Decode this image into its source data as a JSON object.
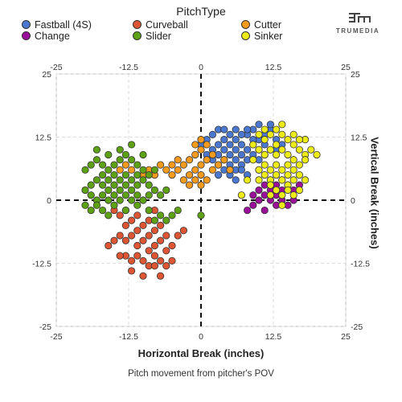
{
  "legend": {
    "title": "PitchType",
    "items": [
      {
        "name": "Fastball (4S)",
        "color": "#4a78d0"
      },
      {
        "name": "Curveball",
        "color": "#de5533"
      },
      {
        "name": "Cutter",
        "color": "#f49a1c"
      },
      {
        "name": "Change",
        "color": "#9a0f99"
      },
      {
        "name": "Slider",
        "color": "#5da214"
      },
      {
        "name": "Sinker",
        "color": "#ecea17"
      }
    ]
  },
  "logo": {
    "text": "TRUMEDIA",
    "icon": "trumedia-logo-icon"
  },
  "chart_data": {
    "type": "scatter",
    "subtitle": "Pitch movement from pitcher's POV",
    "xlabel": "Horizontal Break (inches)",
    "ylabel": "Vertical Break (inches)",
    "xlim": [
      -25,
      25
    ],
    "ylim": [
      -25,
      25
    ],
    "xticks": [
      "-25",
      "-12.5",
      "0",
      "12.5",
      "25"
    ],
    "yticks": [
      "25",
      "12.5",
      "0",
      "-12.5",
      "-25"
    ],
    "grid": true,
    "reference_lines": {
      "x": 0,
      "y": 0,
      "style": "dashed"
    },
    "legend_position": "top",
    "series": [
      {
        "name": "Fastball (4S)",
        "color": "#4a78d0",
        "points": [
          [
            3,
            11
          ],
          [
            4,
            12
          ],
          [
            5,
            13
          ],
          [
            6,
            12
          ],
          [
            7,
            11
          ],
          [
            8,
            13
          ],
          [
            9,
            14
          ],
          [
            10,
            12
          ],
          [
            11,
            13
          ],
          [
            12,
            14
          ],
          [
            13,
            12
          ],
          [
            2,
            10
          ],
          [
            3,
            9
          ],
          [
            4,
            10
          ],
          [
            5,
            9
          ],
          [
            6,
            10
          ],
          [
            7,
            9
          ],
          [
            8,
            10
          ],
          [
            9,
            11
          ],
          [
            10,
            10
          ],
          [
            11,
            11
          ],
          [
            2,
            8
          ],
          [
            3,
            7
          ],
          [
            4,
            8
          ],
          [
            5,
            7
          ],
          [
            6,
            8
          ],
          [
            7,
            7
          ],
          [
            8,
            8
          ],
          [
            9,
            9
          ],
          [
            10,
            8
          ],
          [
            4,
            6
          ],
          [
            5,
            5
          ],
          [
            6,
            6
          ],
          [
            7,
            6
          ],
          [
            1,
            12
          ],
          [
            2,
            13
          ],
          [
            3,
            14
          ],
          [
            4,
            14
          ],
          [
            6,
            14
          ],
          [
            8,
            14
          ],
          [
            10,
            15
          ],
          [
            12,
            15
          ],
          [
            5,
            11
          ],
          [
            7,
            13
          ],
          [
            9,
            12
          ],
          [
            11,
            9
          ],
          [
            12,
            10
          ],
          [
            13,
            10
          ],
          [
            14,
            11
          ],
          [
            3,
            5
          ],
          [
            1,
            9
          ],
          [
            0,
            11
          ],
          [
            6,
            4
          ],
          [
            8,
            5
          ],
          [
            10,
            6
          ]
        ]
      },
      {
        "name": "Curveball",
        "color": "#de5533",
        "points": [
          [
            -15,
            -2
          ],
          [
            -14,
            -3
          ],
          [
            -13,
            -2
          ],
          [
            -12,
            -4
          ],
          [
            -11,
            -3
          ],
          [
            -10,
            -5
          ],
          [
            -9,
            -4
          ],
          [
            -8,
            -6
          ],
          [
            -7,
            -5
          ],
          [
            -14,
            -7
          ],
          [
            -13,
            -8
          ],
          [
            -12,
            -7
          ],
          [
            -11,
            -9
          ],
          [
            -10,
            -8
          ],
          [
            -9,
            -10
          ],
          [
            -8,
            -9
          ],
          [
            -7,
            -8
          ],
          [
            -6,
            -7
          ],
          [
            -13,
            -11
          ],
          [
            -12,
            -12
          ],
          [
            -11,
            -11
          ],
          [
            -10,
            -12
          ],
          [
            -9,
            -13
          ],
          [
            -8,
            -11
          ],
          [
            -7,
            -12
          ],
          [
            -16,
            -9
          ],
          [
            -15,
            -8
          ],
          [
            -6,
            -10
          ],
          [
            -5,
            -9
          ],
          [
            -8,
            -13
          ],
          [
            -10,
            -15
          ],
          [
            -12,
            -14
          ],
          [
            -7,
            -15
          ],
          [
            -5,
            -12
          ],
          [
            -4,
            -7
          ],
          [
            -3,
            -6
          ],
          [
            -9,
            -7
          ],
          [
            -11,
            -6
          ],
          [
            -13,
            -5
          ],
          [
            -6,
            -13
          ],
          [
            -8,
            -2
          ],
          [
            -14,
            -11
          ]
        ]
      },
      {
        "name": "Cutter",
        "color": "#f49a1c",
        "points": [
          [
            -2,
            5
          ],
          [
            -1,
            6
          ],
          [
            0,
            7
          ],
          [
            1,
            8
          ],
          [
            -1,
            9
          ],
          [
            0,
            10
          ],
          [
            1,
            11
          ],
          [
            -2,
            8
          ],
          [
            -3,
            7
          ],
          [
            -4,
            6
          ],
          [
            -5,
            5
          ],
          [
            -3,
            4
          ],
          [
            -2,
            3
          ],
          [
            -1,
            4
          ],
          [
            0,
            5
          ],
          [
            2,
            6
          ],
          [
            3,
            7
          ],
          [
            4,
            8
          ],
          [
            -6,
            6
          ],
          [
            -7,
            7
          ],
          [
            -8,
            5
          ],
          [
            -9,
            6
          ],
          [
            -10,
            5
          ],
          [
            -12,
            6
          ],
          [
            -13,
            7
          ],
          [
            -14,
            6
          ],
          [
            0,
            3
          ],
          [
            1,
            4
          ],
          [
            -1,
            11
          ],
          [
            0,
            12
          ],
          [
            2,
            9
          ],
          [
            5,
            6
          ],
          [
            -4,
            8
          ],
          [
            -5,
            7
          ]
        ]
      },
      {
        "name": "Change",
        "color": "#9a0f99",
        "points": [
          [
            9,
            1
          ],
          [
            10,
            2
          ],
          [
            11,
            3
          ],
          [
            12,
            2
          ],
          [
            13,
            1
          ],
          [
            14,
            2
          ],
          [
            15,
            3
          ],
          [
            16,
            2
          ],
          [
            10,
            0
          ],
          [
            12,
            0
          ],
          [
            14,
            0
          ],
          [
            13,
            -1
          ],
          [
            15,
            -1
          ],
          [
            11,
            -2
          ],
          [
            9,
            -1
          ],
          [
            16,
            0
          ],
          [
            12,
            4
          ],
          [
            14,
            4
          ],
          [
            13,
            3
          ],
          [
            11,
            1
          ],
          [
            8,
            -2
          ],
          [
            17,
            3
          ]
        ]
      },
      {
        "name": "Slider",
        "color": "#5da214",
        "points": [
          [
            -19,
            3
          ],
          [
            -18,
            4
          ],
          [
            -17,
            5
          ],
          [
            -16,
            4
          ],
          [
            -15,
            3
          ],
          [
            -14,
            4
          ],
          [
            -13,
            5
          ],
          [
            -12,
            4
          ],
          [
            -11,
            3
          ],
          [
            -10,
            4
          ],
          [
            -9,
            3
          ],
          [
            -8,
            2
          ],
          [
            -19,
            1
          ],
          [
            -18,
            0
          ],
          [
            -17,
            1
          ],
          [
            -16,
            2
          ],
          [
            -15,
            1
          ],
          [
            -14,
            0
          ],
          [
            -13,
            1
          ],
          [
            -12,
            2
          ],
          [
            -11,
            1
          ],
          [
            -10,
            0
          ],
          [
            -9,
            1
          ],
          [
            -20,
            6
          ],
          [
            -19,
            7
          ],
          [
            -18,
            8
          ],
          [
            -17,
            7
          ],
          [
            -16,
            6
          ],
          [
            -15,
            7
          ],
          [
            -14,
            8
          ],
          [
            -13,
            9
          ],
          [
            -12,
            8
          ],
          [
            -11,
            7
          ],
          [
            -10,
            6
          ],
          [
            -19,
            -2
          ],
          [
            -18,
            -1
          ],
          [
            -17,
            -2
          ],
          [
            -16,
            -3
          ],
          [
            -15,
            -1
          ],
          [
            -13,
            -2
          ],
          [
            -11,
            -1
          ],
          [
            -9,
            -2
          ],
          [
            -7,
            -3
          ],
          [
            -6,
            -4
          ],
          [
            -5,
            -3
          ],
          [
            -7,
            1
          ],
          [
            -6,
            2
          ],
          [
            -8,
            6
          ],
          [
            -20,
            2
          ],
          [
            -20,
            -1
          ],
          [
            -14,
            10
          ],
          [
            -12,
            11
          ],
          [
            -10,
            9
          ],
          [
            -16,
            9
          ],
          [
            -18,
            10
          ],
          [
            -8,
            -4
          ],
          [
            -4,
            -2
          ],
          [
            0,
            -3
          ],
          [
            -15,
            5
          ],
          [
            -17,
            3
          ],
          [
            -13,
            3
          ],
          [
            -11,
            5
          ],
          [
            -9,
            5
          ],
          [
            -14,
            2
          ],
          [
            -12,
            0
          ],
          [
            -16,
            0
          ]
        ]
      },
      {
        "name": "Sinker",
        "color": "#ecea17",
        "points": [
          [
            11,
            12
          ],
          [
            12,
            13
          ],
          [
            13,
            14
          ],
          [
            14,
            13
          ],
          [
            15,
            12
          ],
          [
            16,
            11
          ],
          [
            17,
            10
          ],
          [
            18,
            9
          ],
          [
            19,
            10
          ],
          [
            10,
            10
          ],
          [
            11,
            9
          ],
          [
            12,
            10
          ],
          [
            13,
            11
          ],
          [
            14,
            10
          ],
          [
            15,
            9
          ],
          [
            16,
            8
          ],
          [
            17,
            7
          ],
          [
            18,
            8
          ],
          [
            11,
            7
          ],
          [
            12,
            6
          ],
          [
            13,
            7
          ],
          [
            14,
            6
          ],
          [
            15,
            5
          ],
          [
            16,
            6
          ],
          [
            17,
            5
          ],
          [
            12,
            4
          ],
          [
            13,
            5
          ],
          [
            14,
            4
          ],
          [
            15,
            3
          ],
          [
            16,
            4
          ],
          [
            13,
            2
          ],
          [
            14,
            1
          ],
          [
            15,
            2
          ],
          [
            12,
            3
          ],
          [
            10,
            6
          ],
          [
            9,
            8
          ],
          [
            9,
            11
          ],
          [
            10,
            13
          ],
          [
            11,
            14
          ],
          [
            14,
            15
          ],
          [
            16,
            13
          ],
          [
            18,
            12
          ],
          [
            20,
            9
          ],
          [
            16,
            1
          ],
          [
            14,
            -1
          ],
          [
            12,
            1
          ],
          [
            11,
            5
          ],
          [
            17,
            2
          ],
          [
            18,
            4
          ],
          [
            8,
            4
          ],
          [
            7,
            1
          ],
          [
            15,
            7
          ],
          [
            13,
            9
          ],
          [
            17,
            12
          ],
          [
            10,
            4
          ]
        ]
      }
    ]
  }
}
